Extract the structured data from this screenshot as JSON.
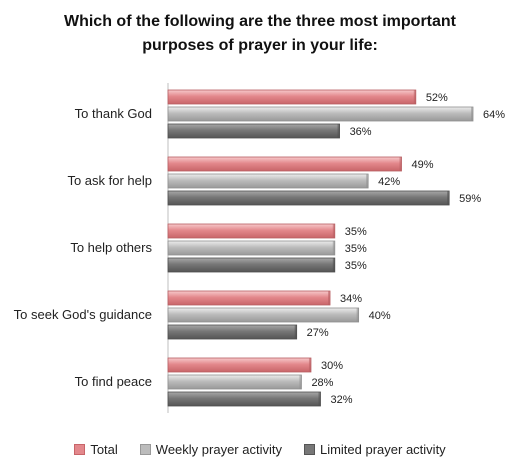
{
  "chart_data": {
    "type": "bar",
    "orientation": "horizontal",
    "title": [
      "Which of the following are the three most important",
      "purposes of prayer in your life:"
    ],
    "categories": [
      "To thank God",
      "To ask for help",
      "To help others",
      "To seek God's guidance",
      "To find peace"
    ],
    "series": [
      {
        "name": "Total",
        "values": [
          52,
          49,
          35,
          34,
          30
        ],
        "color": "#e3888c"
      },
      {
        "name": "Weekly prayer activity",
        "values": [
          64,
          42,
          35,
          40,
          28
        ],
        "color": "#bcbcbc"
      },
      {
        "name": "Limited prayer activity",
        "values": [
          36,
          59,
          35,
          27,
          32
        ],
        "color": "#777777"
      }
    ],
    "value_suffix": "%",
    "xlim": [
      0,
      100
    ],
    "grid": false,
    "legend_position": "bottom"
  }
}
